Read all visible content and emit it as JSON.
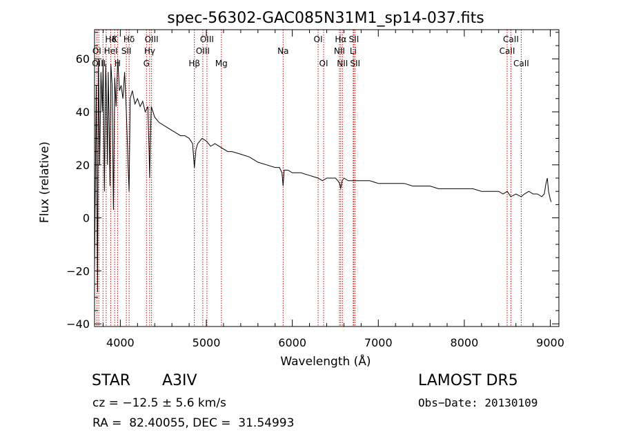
{
  "chart_data": {
    "type": "line",
    "title": "spec-56302-GAC085N31M1_sp14-037.fits",
    "xlabel": "Wavelength (Å)",
    "ylabel": "Flux (relative)",
    "xlim": [
      3700,
      9100
    ],
    "ylim": [
      -41,
      71
    ],
    "x_ticks": [
      4000,
      5000,
      6000,
      7000,
      8000,
      9000
    ],
    "y_ticks": [
      -40,
      -20,
      0,
      20,
      40,
      60
    ],
    "x_tick_labels": [
      "4000",
      "5000",
      "6000",
      "7000",
      "8000",
      "9000"
    ],
    "y_tick_labels": [
      "−40",
      "−20",
      "0",
      "20",
      "40",
      "60"
    ],
    "grid": false,
    "series": [
      {
        "color": "#000000",
        "x": [
          3700,
          3720,
          3735,
          3745,
          3760,
          3775,
          3790,
          3800,
          3815,
          3830,
          3840,
          3850,
          3860,
          3870,
          3880,
          3890,
          3905,
          3920,
          3935,
          3950,
          3970,
          3990,
          4010,
          4030,
          4050,
          4070,
          4090,
          4102,
          4115,
          4140,
          4170,
          4200,
          4230,
          4260,
          4290,
          4320,
          4335,
          4341,
          4348,
          4360,
          4400,
          4450,
          4500,
          4550,
          4600,
          4650,
          4700,
          4750,
          4800,
          4840,
          4861,
          4880,
          4900,
          4950,
          5000,
          5050,
          5100,
          5150,
          5200,
          5250,
          5300,
          5400,
          5500,
          5600,
          5700,
          5800,
          5850,
          5880,
          5893,
          5905,
          5950,
          6000,
          6100,
          6200,
          6300,
          6350,
          6400,
          6450,
          6500,
          6530,
          6550,
          6563,
          6580,
          6600,
          6650,
          6700,
          6800,
          6900,
          7000,
          7100,
          7200,
          7300,
          7400,
          7500,
          7600,
          7700,
          7800,
          7900,
          8000,
          8100,
          8200,
          8300,
          8400,
          8450,
          8500,
          8540,
          8600,
          8662,
          8700,
          8750,
          8800,
          8850,
          8900,
          8930,
          8950,
          8965,
          8980,
          9000,
          9010
        ],
        "y": [
          -20,
          50,
          -28,
          60,
          20,
          55,
          40,
          60,
          10,
          58,
          45,
          20,
          55,
          35,
          12,
          58,
          50,
          3,
          53,
          42,
          60,
          48,
          50,
          45,
          55,
          40,
          20,
          10,
          45,
          48,
          43,
          45,
          42,
          44,
          40,
          42,
          25,
          15,
          28,
          42,
          38,
          36,
          35,
          34,
          33,
          32,
          31,
          31,
          30,
          28,
          19,
          26,
          28,
          30,
          29,
          27,
          28,
          27,
          26,
          25,
          25,
          24,
          23,
          21,
          20,
          19,
          19,
          17,
          12,
          18,
          18,
          17,
          17,
          16,
          15,
          14,
          15,
          15,
          15,
          14,
          13,
          11,
          14,
          15,
          14,
          14,
          14,
          14,
          13,
          13,
          13,
          13,
          12,
          12,
          12,
          11,
          11,
          11,
          11,
          11,
          10,
          10,
          10,
          9,
          10,
          8,
          9,
          8,
          9,
          10,
          9,
          9,
          8,
          9,
          13,
          15,
          10,
          7,
          6
        ]
      }
    ],
    "annotations": [
      {
        "label": "Hδ",
        "wl": 3889,
        "row": 1
      },
      {
        "label": "K",
        "wl": 3934,
        "row": 1
      },
      {
        "label": "Hδ",
        "wl": 4102,
        "row": 1
      },
      {
        "label": "OIII",
        "wl": 4363,
        "row": 1
      },
      {
        "label": "OIII",
        "wl": 5007,
        "row": 1
      },
      {
        "label": "OI",
        "wl": 6300,
        "row": 1
      },
      {
        "label": "Hα",
        "wl": 6563,
        "row": 1
      },
      {
        "label": "SII",
        "wl": 6716,
        "row": 1
      },
      {
        "label": "CaII",
        "wl": 8542,
        "row": 1
      },
      {
        "label": "OI",
        "wl": 3727,
        "row": 2
      },
      {
        "label": "HeI",
        "wl": 3889,
        "row": 2
      },
      {
        "label": "SII",
        "wl": 4070,
        "row": 2
      },
      {
        "label": "Hγ",
        "wl": 4341,
        "row": 2
      },
      {
        "label": "OIII",
        "wl": 4959,
        "row": 2
      },
      {
        "label": "Na",
        "wl": 5893,
        "row": 2
      },
      {
        "label": "NII",
        "wl": 6548,
        "row": 2
      },
      {
        "label": "Li",
        "wl": 6708,
        "row": 2
      },
      {
        "label": "CaII",
        "wl": 8498,
        "row": 2
      },
      {
        "label": "OIII",
        "wl": 3750,
        "row": 3
      },
      {
        "label": "H",
        "wl": 3968,
        "row": 3
      },
      {
        "label": "G",
        "wl": 4304,
        "row": 3
      },
      {
        "label": "Hβ",
        "wl": 4861,
        "row": 3
      },
      {
        "label": "Mg",
        "wl": 5175,
        "row": 3
      },
      {
        "label": "OI",
        "wl": 6364,
        "row": 3
      },
      {
        "label": "NII",
        "wl": 6583,
        "row": 3
      },
      {
        "label": "SII",
        "wl": 6731,
        "row": 3
      },
      {
        "label": "CaII",
        "wl": 8662,
        "row": 3
      }
    ],
    "line_positions": [
      3727,
      3750,
      3798,
      3835,
      3889,
      3934,
      3968,
      4070,
      4102,
      4304,
      4341,
      4363,
      4861,
      4959,
      5007,
      5175,
      5893,
      6300,
      6364,
      6548,
      6563,
      6583,
      6708,
      6716,
      6731,
      8498,
      8542,
      8662
    ]
  },
  "info": {
    "object_class": "STAR",
    "subclass": "A3IV",
    "cz": "cz = −12.5 ± 5.6 km/s",
    "coords": "RA =  82.40055, DEC =  31.54993",
    "survey": "LAMOST DR5",
    "obs_date": "Obs−Date: 20130109"
  },
  "colors": {
    "spectrum": "#000000",
    "line_markers": "#cc0000",
    "background": "#ffffff"
  }
}
